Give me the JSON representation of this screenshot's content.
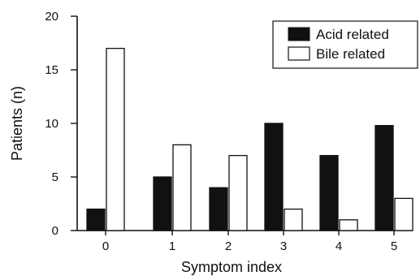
{
  "chart_data": {
    "type": "bar",
    "title": "",
    "xlabel": "Symptom index",
    "ylabel": "Patients (n)",
    "categories": [
      "0",
      "1",
      "2",
      "3",
      "4",
      "5"
    ],
    "series": [
      {
        "name": "Acid related",
        "values": [
          2,
          5,
          4,
          10,
          7,
          9.8
        ],
        "color": "#111111"
      },
      {
        "name": "Bile related",
        "values": [
          17,
          8,
          7,
          2,
          1,
          3
        ],
        "color": "#ffffff"
      }
    ],
    "ylim": [
      0,
      20
    ],
    "yticks": [
      "0",
      "5",
      "10",
      "15",
      "20"
    ],
    "grid": false,
    "legend_position": "top-right"
  }
}
